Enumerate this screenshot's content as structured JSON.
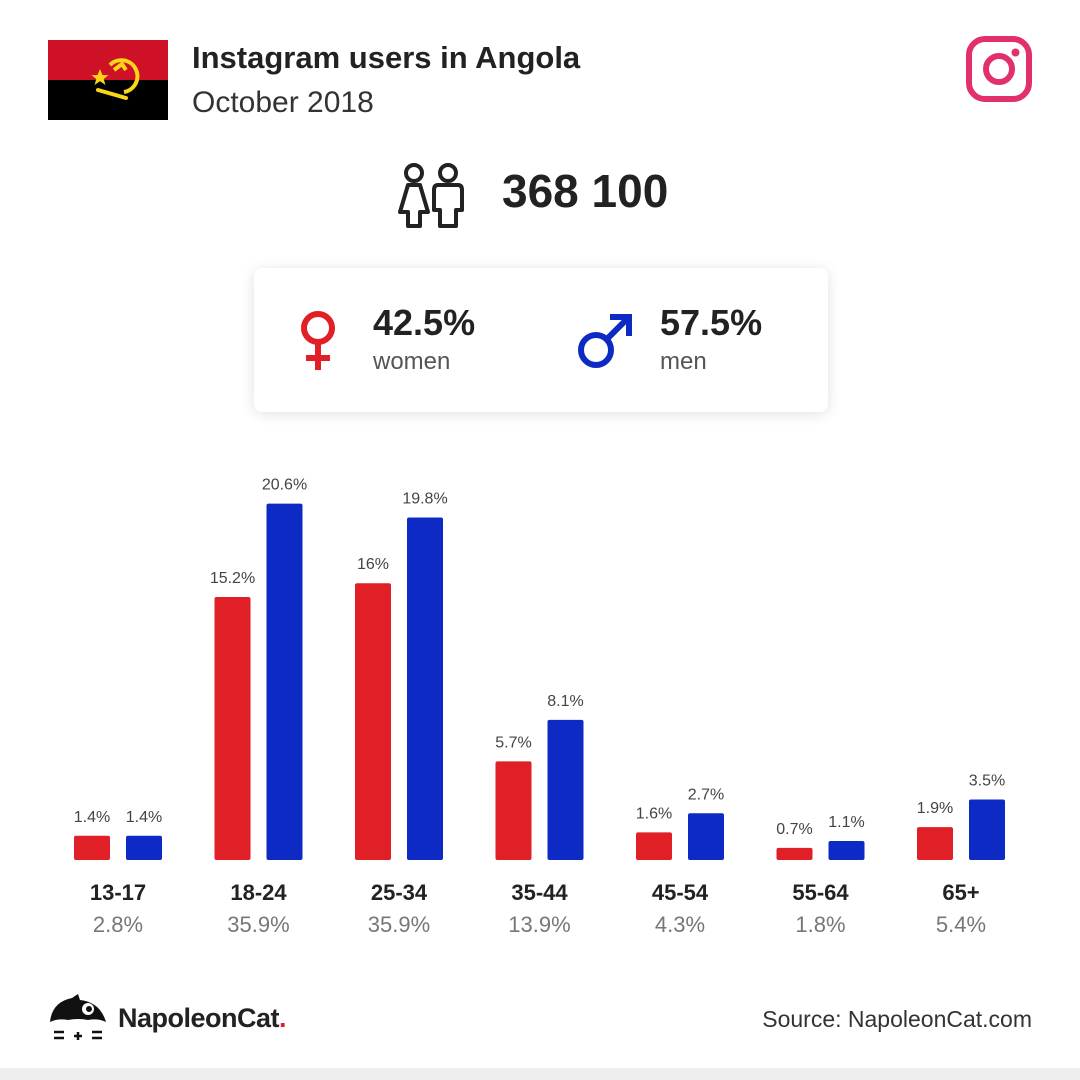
{
  "header": {
    "title": "Instagram users in Angola",
    "subtitle": "October 2018"
  },
  "icons": {
    "flag": "angola-flag-icon",
    "platform": "instagram-icon",
    "people": "people-icon",
    "female": "female-symbol-icon",
    "male": "male-symbol-icon",
    "logo": "napoleoncat-logo-icon"
  },
  "total": {
    "value": "368 100"
  },
  "gender": {
    "women": {
      "percent": "42.5%",
      "label": "women"
    },
    "men": {
      "percent": "57.5%",
      "label": "men"
    }
  },
  "colors": {
    "women": "#e01f26",
    "men": "#0e2ac4",
    "instagram": "#e1306c"
  },
  "chart_data": {
    "type": "bar",
    "categories": [
      "13-17",
      "18-24",
      "25-34",
      "35-44",
      "45-54",
      "55-64",
      "65+"
    ],
    "category_totals": [
      "2.8%",
      "35.9%",
      "35.9%",
      "13.9%",
      "4.3%",
      "1.8%",
      "5.4%"
    ],
    "series": [
      {
        "values": [
          1.4,
          15.2,
          16,
          5.7,
          1.6,
          0.7,
          1.9
        ],
        "labels": [
          "1.4%",
          "15.2%",
          "16%",
          "5.7%",
          "1.6%",
          "0.7%",
          "1.9%"
        ]
      },
      {
        "values": [
          1.4,
          20.6,
          19.8,
          8.1,
          2.7,
          1.1,
          3.5
        ],
        "labels": [
          "1.4%",
          "20.6%",
          "19.8%",
          "8.1%",
          "2.7%",
          "1.1%",
          "3.5%"
        ]
      }
    ]
  },
  "footer": {
    "brand": "NapoleonCat",
    "brand_dot": ".",
    "source": "Source: NapoleonCat.com"
  }
}
